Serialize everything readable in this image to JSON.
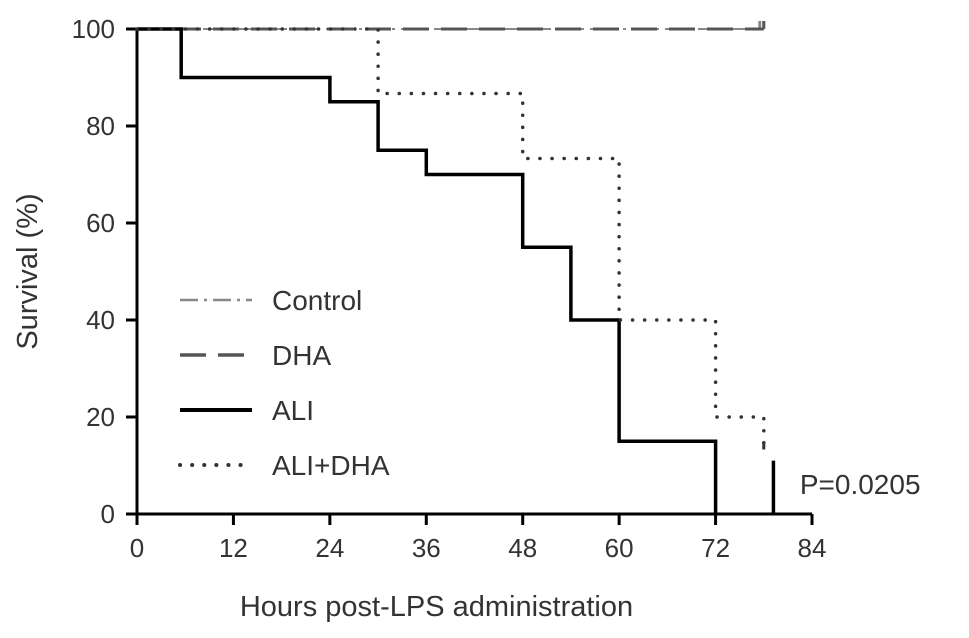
{
  "chart_data": {
    "type": "line",
    "subtype": "kaplan-meier step",
    "title": "",
    "xlabel": "Hours post-LPS administration",
    "ylabel": "Survival (%)",
    "xlim": [
      0,
      84
    ],
    "ylim": [
      0,
      100
    ],
    "xticks": [
      0,
      12,
      24,
      36,
      48,
      60,
      72,
      84
    ],
    "yticks": [
      0,
      20,
      40,
      60,
      80,
      100
    ],
    "grid": false,
    "legend_position": "center-left",
    "series": [
      {
        "name": "Control",
        "style": "dash-dot",
        "color": "#888888",
        "points": [
          [
            0,
            100
          ],
          [
            77.5,
            100
          ]
        ]
      },
      {
        "name": "DHA",
        "style": "dashed",
        "color": "#555555",
        "points": [
          [
            0,
            100
          ],
          [
            78,
            100
          ]
        ]
      },
      {
        "name": "ALI",
        "style": "solid",
        "color": "#000000",
        "points": [
          [
            0,
            100
          ],
          [
            5.5,
            100
          ],
          [
            5.5,
            90
          ],
          [
            24,
            90
          ],
          [
            24,
            85
          ],
          [
            30,
            85
          ],
          [
            30,
            75
          ],
          [
            36,
            75
          ],
          [
            36,
            70
          ],
          [
            48,
            70
          ],
          [
            48,
            55
          ],
          [
            54,
            55
          ],
          [
            54,
            40
          ],
          [
            60,
            40
          ],
          [
            60,
            15
          ],
          [
            72,
            15
          ],
          [
            72,
            0
          ]
        ]
      },
      {
        "name": "ALI+DHA",
        "style": "dotted",
        "color": "#333333",
        "points": [
          [
            0,
            100
          ],
          [
            30,
            100
          ],
          [
            30,
            86.7
          ],
          [
            48,
            86.7
          ],
          [
            48,
            73.3
          ],
          [
            60,
            73.3
          ],
          [
            60,
            40
          ],
          [
            72,
            40
          ],
          [
            72,
            20
          ],
          [
            78,
            20
          ],
          [
            78,
            13.3
          ]
        ]
      }
    ],
    "annotations": [
      {
        "text": "P=0.0205",
        "x": 80,
        "y": 6
      }
    ]
  }
}
